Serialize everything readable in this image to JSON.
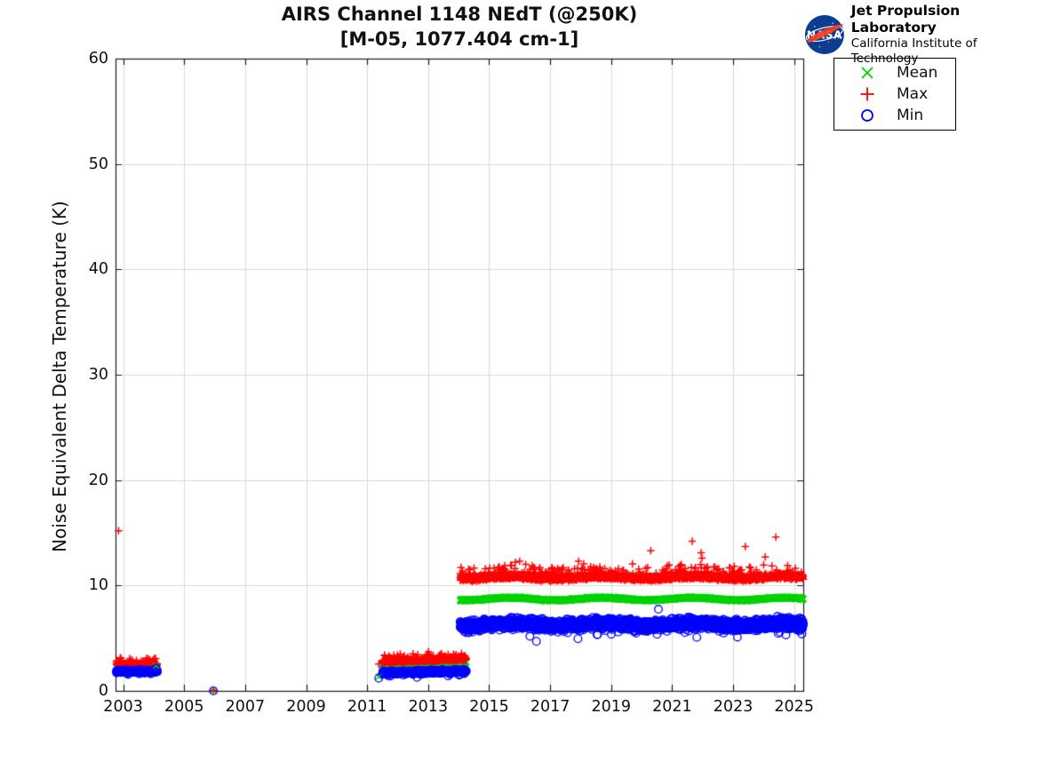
{
  "header": {
    "title_line1": "AIRS Channel 1148 NEdT (@250K)",
    "title_line2": "[M-05, 1077.404 cm-1]",
    "logo": {
      "org": "NASA",
      "line1": "Jet Propulsion Laboratory",
      "line2": "California Institute of Technology"
    }
  },
  "legend": {
    "items": [
      {
        "label": "Mean",
        "marker": "x",
        "color": "#00d300"
      },
      {
        "label": "Max",
        "marker": "plus",
        "color": "#ff0000"
      },
      {
        "label": "Min",
        "marker": "circle",
        "color": "#0000ff"
      }
    ]
  },
  "chart_data": {
    "type": "scatter",
    "title": "AIRS Channel 1148 NEdT (@250K)",
    "subtitle": "[M-05, 1077.404 cm-1]",
    "xlabel": "",
    "ylabel": "Noise Equivalent Delta Temperature (K)",
    "xlim": [
      2002.75,
      2025.3
    ],
    "ylim": [
      0,
      60
    ],
    "xticks": [
      2003,
      2005,
      2007,
      2009,
      2011,
      2013,
      2015,
      2017,
      2019,
      2021,
      2023,
      2025
    ],
    "yticks": [
      0,
      10,
      20,
      30,
      40,
      50,
      60
    ],
    "grid": true,
    "legend_position": "outside-top-right",
    "colors": {
      "mean": "#00d300",
      "max": "#ff0000",
      "min": "#0000ff",
      "grid": "#d9d9d9",
      "axis": "#1a1a1a"
    },
    "series": [
      {
        "name": "Mean",
        "marker": "x",
        "color": "#00d300"
      },
      {
        "name": "Max",
        "marker": "plus",
        "color": "#ff0000"
      },
      {
        "name": "Min",
        "marker": "circle",
        "color": "#0000ff"
      }
    ],
    "segments": [
      {
        "id": "early-mission-2003",
        "x0": 2002.78,
        "x1": 2004.12,
        "points": 270,
        "mean": {
          "base": 2.3,
          "spread": 0.07
        },
        "max": {
          "base": 2.5,
          "spread": 0.18,
          "spike_p": 0.12,
          "spike_amp": 0.6
        },
        "min": {
          "base": 1.85,
          "spread": 0.18,
          "tail_p": 0.05,
          "tail_amp": -0.35
        }
      },
      {
        "id": "pre-2014",
        "x0": 2011.5,
        "x1": 2014.25,
        "points": 540,
        "mean": {
          "base": 2.55,
          "spread": 0.07,
          "trend": 0.15
        },
        "max": {
          "base": 2.8,
          "spread": 0.2,
          "trend": 0.25,
          "spike_p": 0.12,
          "spike_amp": 0.65
        },
        "min": {
          "base": 1.7,
          "spread": 0.22,
          "trend": 0.2,
          "tail_p": 0.03,
          "tail_amp": -0.4
        }
      },
      {
        "id": "post-2014",
        "x0": 2014.05,
        "x1": 2025.3,
        "points": 2700,
        "mean": {
          "base": 8.72,
          "spread": 0.15,
          "wave": 0.12
        },
        "max": {
          "base": 10.78,
          "spread": 0.36,
          "wave": 0.1,
          "spike_p": 0.09,
          "spike_amp": 1.05
        },
        "min": {
          "base": 6.3,
          "spread": 0.72,
          "wave": 0.12,
          "tail_p": 0.02,
          "tail_amp": -1.0
        }
      }
    ],
    "lone_points": [
      {
        "x": 2005.96,
        "mean": 0.02,
        "max": 0.05,
        "min": 0.0
      },
      {
        "x": 2011.38,
        "mean": 1.35,
        "max": 2.55,
        "min": 1.2
      },
      {
        "x": 2004.08,
        "mean": 2.4,
        "min": 2.15
      }
    ],
    "max_outliers": [
      [
        2002.85,
        15.2
      ],
      [
        2015.86,
        12.2
      ],
      [
        2016.0,
        12.3
      ],
      [
        2016.2,
        12.0
      ],
      [
        2017.93,
        12.3
      ],
      [
        2018.1,
        12.05
      ],
      [
        2019.7,
        12.05
      ],
      [
        2020.3,
        13.3
      ],
      [
        2021.66,
        14.2
      ],
      [
        2021.95,
        13.1
      ],
      [
        2021.98,
        12.6
      ],
      [
        2023.4,
        13.7
      ],
      [
        2024.05,
        12.7
      ],
      [
        2024.4,
        14.6
      ]
    ],
    "min_outliers": [
      [
        2016.55,
        4.7
      ],
      [
        2020.55,
        7.75
      ]
    ]
  }
}
